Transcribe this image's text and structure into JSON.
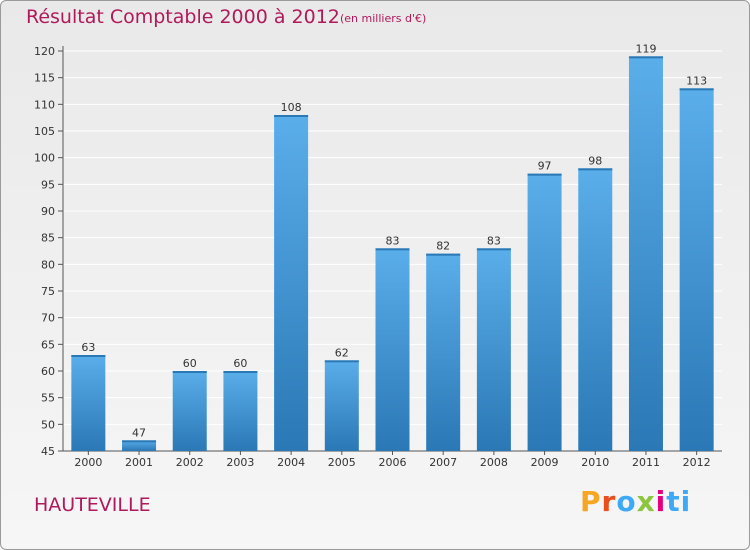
{
  "header": {
    "title": "Résultat Comptable 2000 à 2012",
    "subtitle": "(en milliers d'€)"
  },
  "footer": {
    "place": "HAUTEVILLE",
    "logo_letters": [
      "P",
      "r",
      "o",
      "x",
      "i",
      "ti"
    ]
  },
  "colors": {
    "accent": "#b0195b",
    "bar_top": "#5aaeea",
    "bar_bottom": "#2a78b5",
    "grid": "#ffffff"
  },
  "chart_data": {
    "type": "bar",
    "title": "Résultat Comptable 2000 à 2012",
    "subtitle": "(en milliers d'€)",
    "categories": [
      "2000",
      "2001",
      "2002",
      "2003",
      "2004",
      "2005",
      "2006",
      "2007",
      "2008",
      "2009",
      "2010",
      "2011",
      "2012"
    ],
    "values": [
      63,
      47,
      60,
      60,
      108,
      62,
      83,
      82,
      83,
      97,
      98,
      119,
      113
    ],
    "ylim": [
      45,
      120
    ],
    "yticks": [
      45,
      50,
      55,
      60,
      65,
      70,
      75,
      80,
      85,
      90,
      95,
      100,
      105,
      110,
      115,
      120
    ],
    "grid": true,
    "xlabel": "",
    "ylabel": ""
  }
}
